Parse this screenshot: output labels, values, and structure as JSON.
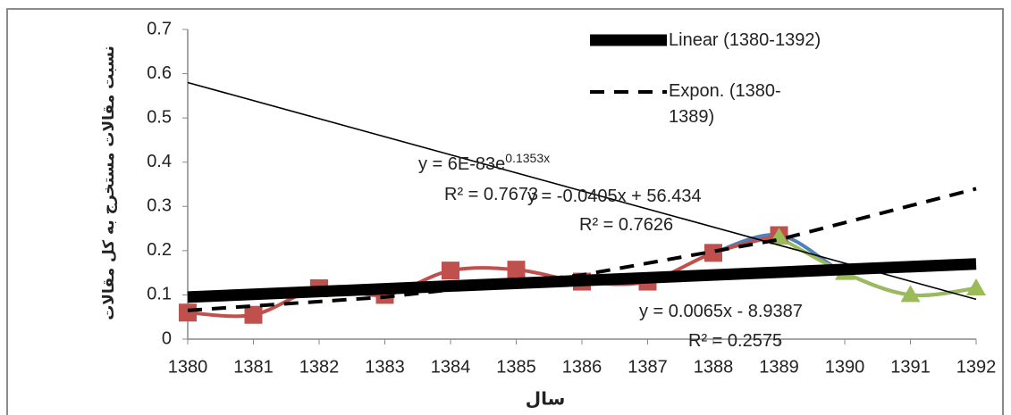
{
  "chart_data": {
    "type": "line",
    "x_label": "سال",
    "y_label": "نسبت مقالات مستخرج به کل مقالات",
    "xlim": [
      1380,
      1392
    ],
    "xticks": [
      1380,
      1381,
      1382,
      1383,
      1384,
      1385,
      1386,
      1387,
      1388,
      1389,
      1390,
      1391,
      1392
    ],
    "ylim": [
      0,
      0.7
    ],
    "yticks": [
      0,
      0.1,
      0.2,
      0.3,
      0.4,
      0.5,
      0.6,
      0.7
    ],
    "series": [
      {
        "color": "#4f81bd",
        "marker": "none",
        "x": [
          1388,
          1389,
          1390,
          1391,
          1392
        ],
        "values": [
          0.195,
          0.235,
          0.15,
          0.1,
          0.115
        ]
      },
      {
        "color": "#c0504d",
        "marker": "square",
        "x": [
          1380,
          1381,
          1382,
          1383,
          1384,
          1385,
          1386,
          1387,
          1388,
          1389
        ],
        "values": [
          0.06,
          0.055,
          0.115,
          0.1,
          0.155,
          0.157,
          0.13,
          0.13,
          0.195,
          0.235
        ]
      },
      {
        "color": "#9bbb59",
        "marker": "triangle",
        "x": [
          1389,
          1390,
          1391,
          1392
        ],
        "values": [
          0.23,
          0.15,
          0.1,
          0.115
        ]
      }
    ],
    "trendlines": [
      {
        "name": "Linear (1380-1392)",
        "style": "thick",
        "color": "#000000",
        "x": [
          1380,
          1392
        ],
        "values": [
          0.095,
          0.17
        ]
      },
      {
        "name": "Expon. (1380-1389)",
        "style": "dashed",
        "color": "#000000",
        "x": [
          1380,
          1383,
          1386,
          1389,
          1392
        ],
        "values": [
          0.065,
          0.095,
          0.145,
          0.225,
          0.34
        ]
      },
      {
        "style": "thin",
        "color": "#000000",
        "x": [
          1380,
          1392
        ],
        "values": [
          0.58,
          0.09
        ]
      }
    ],
    "annotations": [
      {
        "text": "y = 6E-83e",
        "superscript": "0.1353x"
      },
      {
        "text": "R² = 0.7673"
      },
      {
        "text": "y = -0.0405x + 56.434"
      },
      {
        "text": "R² = 0.7626"
      },
      {
        "text": "y = 0.0065x - 8.9387"
      },
      {
        "text": "R² = 0.2575"
      }
    ]
  }
}
